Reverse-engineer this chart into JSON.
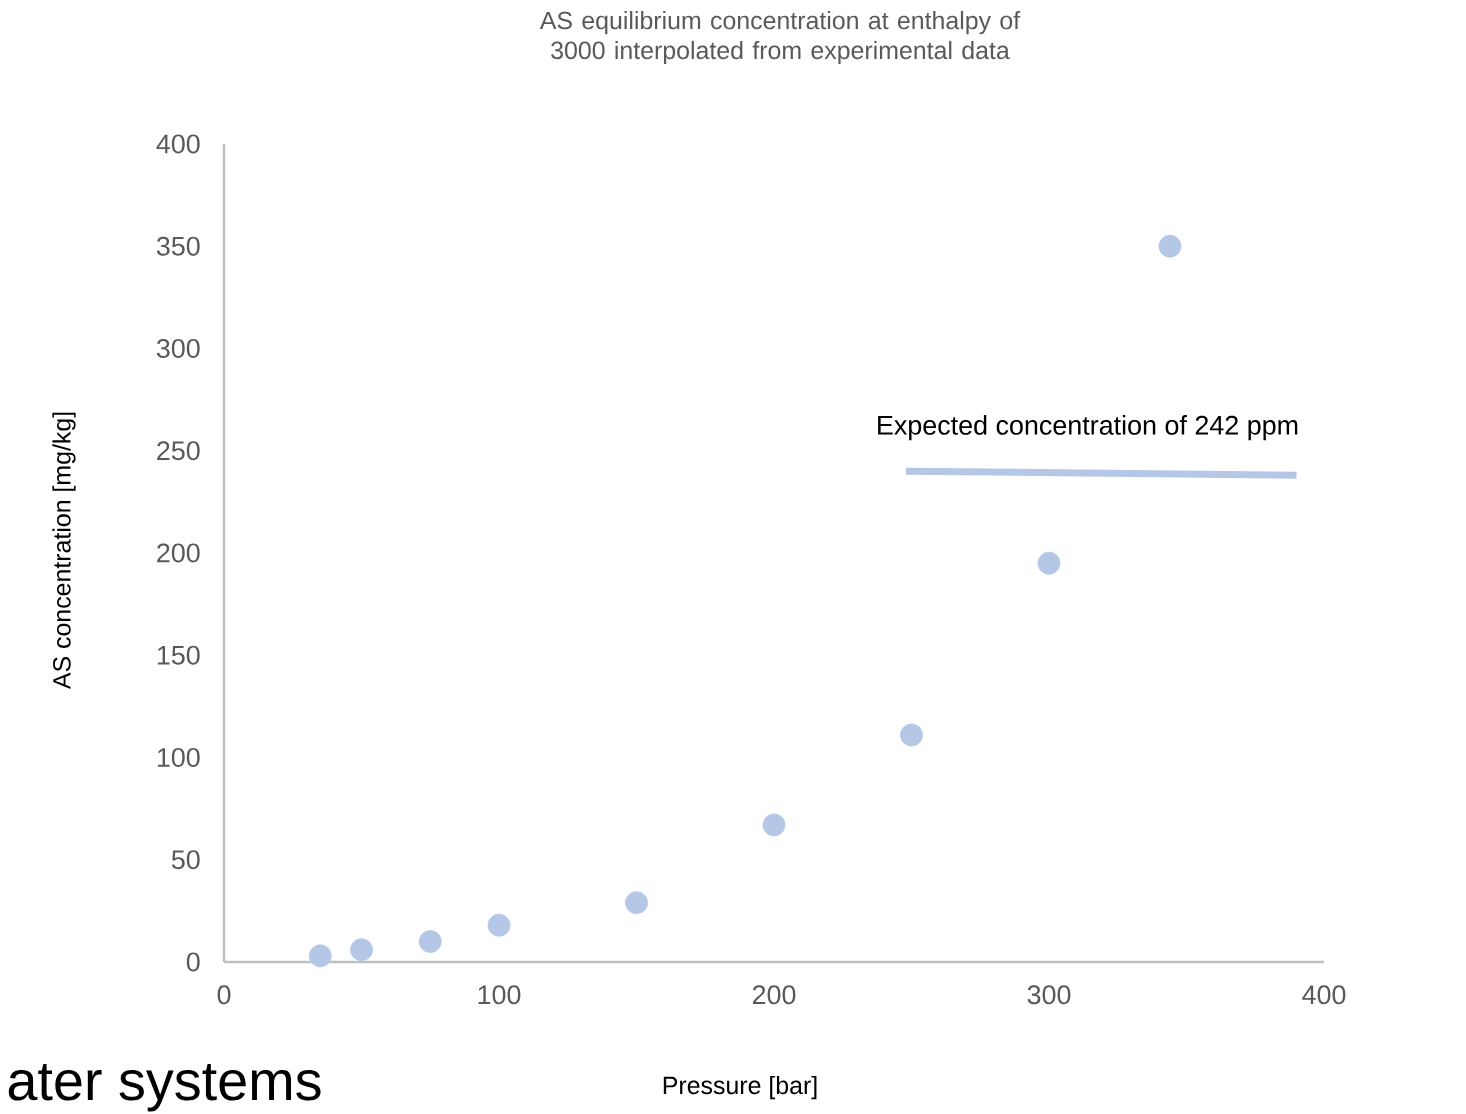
{
  "chart_data": {
    "type": "scatter",
    "title": "AS equilibrium  concentration at enthalpy of 3000 interpolated from experimental data",
    "xlabel": "Pressure [bar]",
    "ylabel": "AS concentration [mg/kg]",
    "xlim": [
      0,
      400
    ],
    "xticks": [
      0,
      100,
      200,
      300,
      400
    ],
    "ylim": [
      0,
      400
    ],
    "yticks": [
      0,
      50,
      100,
      150,
      200,
      250,
      300,
      350,
      400
    ],
    "series": [
      {
        "marker": "circle",
        "color": "#b4c7e7",
        "x": [
          35,
          50,
          75,
          100,
          150,
          200,
          250,
          300,
          344
        ],
        "values": [
          3,
          6,
          10,
          18,
          29,
          67,
          111,
          195,
          350
        ]
      },
      {
        "type": "line",
        "marker": "none",
        "color": "#b4c7e7",
        "x": [
          248,
          390
        ],
        "values": [
          240,
          238
        ]
      }
    ],
    "annotations": [
      {
        "text": "Expected concentration of 242 ppm",
        "x": 314,
        "y": 240
      },
      "ater systems"
    ]
  }
}
